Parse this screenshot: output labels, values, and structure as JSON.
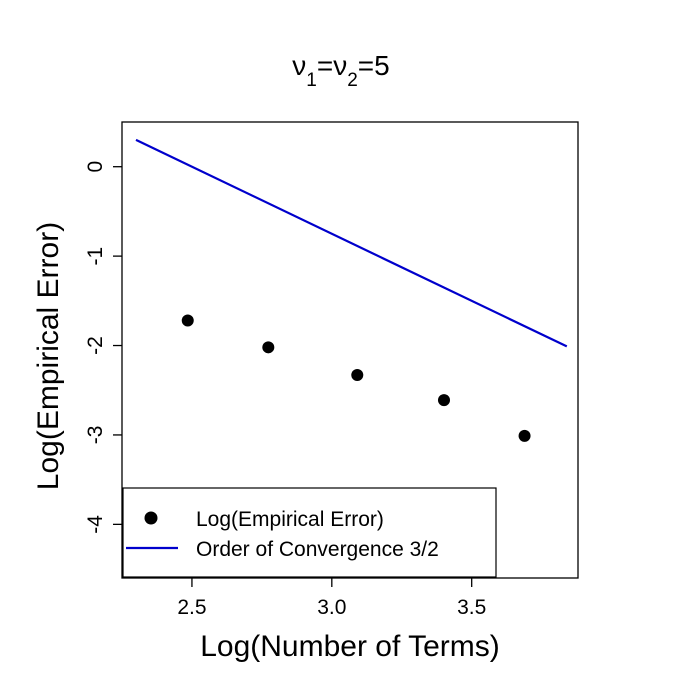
{
  "chart_data": {
    "type": "scatter",
    "title": {
      "parts": [
        {
          "text": "ν",
          "sub": false
        },
        {
          "text": "1",
          "sub": true
        },
        {
          "text": "=ν",
          "sub": false
        },
        {
          "text": "2",
          "sub": true
        },
        {
          "text": "=5",
          "sub": false
        }
      ]
    },
    "xlabel": "Log(Number of Terms)",
    "ylabel": "Log(Empirical Error)",
    "xlim": [
      2.25,
      3.88
    ],
    "ylim": [
      -4.6,
      0.5
    ],
    "x_ticks": [
      {
        "value": 2.5,
        "label": "2.5"
      },
      {
        "value": 3.0,
        "label": "3.0"
      },
      {
        "value": 3.5,
        "label": "3.5"
      }
    ],
    "y_ticks": [
      {
        "value": 0,
        "label": "0"
      },
      {
        "value": -1,
        "label": "-1"
      },
      {
        "value": -2,
        "label": "-2"
      },
      {
        "value": -3,
        "label": "-3"
      },
      {
        "value": -4,
        "label": "-4"
      }
    ],
    "grid": false,
    "legend_position": "bottom-left",
    "series": [
      {
        "name": "Log(Empirical Error)",
        "kind": "points",
        "color": "#000000",
        "x": [
          2.485,
          2.773,
          3.091,
          3.401,
          3.689
        ],
        "y": [
          -1.72,
          -2.02,
          -2.33,
          -2.61,
          -3.01
        ]
      },
      {
        "name": "Order of Convergence 3/2",
        "kind": "line",
        "color": "#0000cc",
        "x": [
          2.3,
          3.84
        ],
        "y": [
          0.3,
          -2.01
        ]
      }
    ]
  }
}
